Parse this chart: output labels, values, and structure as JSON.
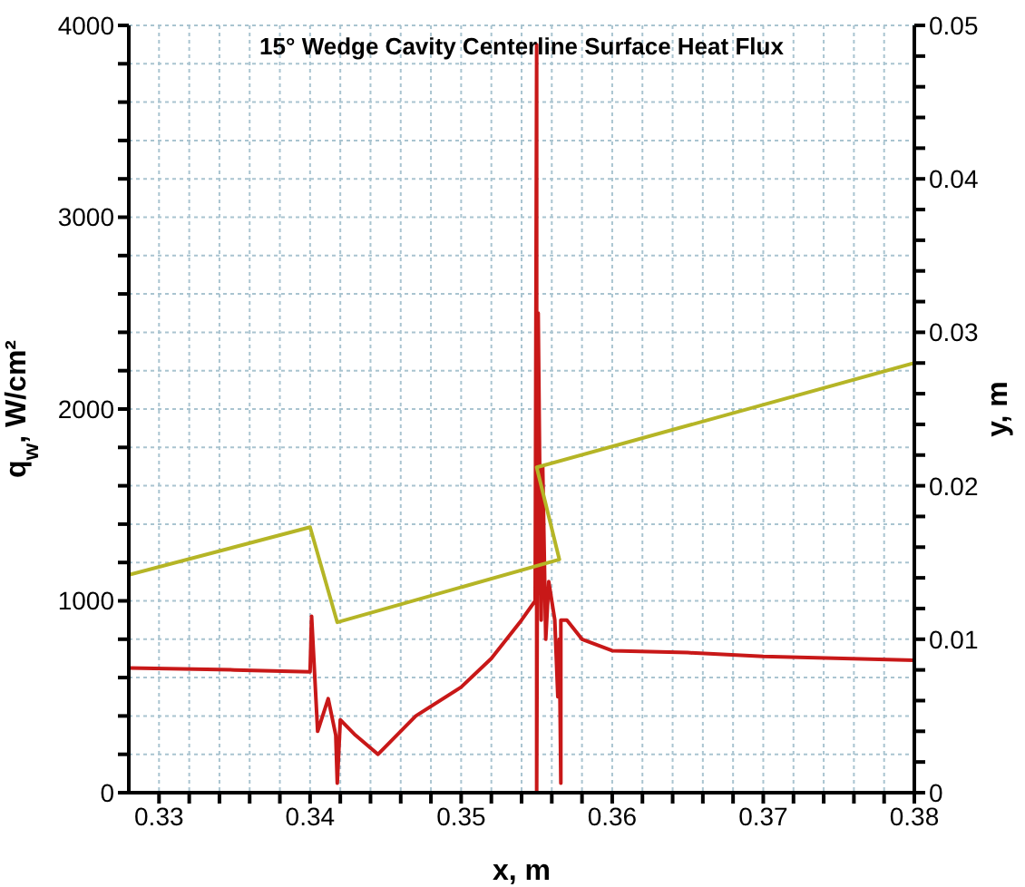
{
  "chart_data": {
    "type": "line",
    "title": "15° Wedge Cavity Centerline Surface Heat Flux",
    "xlabel": "x, m",
    "ylabel": "q$_{w}$, W/cm²",
    "y2label": "y, m",
    "xlim": [
      0.328,
      0.38
    ],
    "xticks": [
      0.33,
      {
        "value": 0.332,
        "label": null
      },
      {
        "value": 0.334,
        "label": null
      },
      {
        "value": 0.336,
        "label": null
      },
      {
        "value": 0.338,
        "label": null
      },
      0.34,
      {
        "value": 0.342,
        "label": null
      },
      {
        "value": 0.344,
        "label": null
      },
      {
        "value": 0.346,
        "label": null
      },
      {
        "value": 0.348,
        "label": null
      },
      0.35,
      {
        "value": 0.352,
        "label": null
      },
      {
        "value": 0.354,
        "label": null
      },
      {
        "value": 0.356,
        "label": null
      },
      {
        "value": 0.358,
        "label": null
      },
      0.36,
      {
        "value": 0.362,
        "label": null
      },
      {
        "value": 0.364,
        "label": null
      },
      {
        "value": 0.366,
        "label": null
      },
      {
        "value": 0.368,
        "label": null
      },
      0.37,
      {
        "value": 0.372,
        "label": null
      },
      {
        "value": 0.374,
        "label": null
      },
      {
        "value": 0.376,
        "label": null
      },
      {
        "value": 0.378,
        "label": null
      },
      0.38
    ],
    "ylim": [
      0,
      4000
    ],
    "yticks": [
      0,
      {
        "value": 200,
        "label": null
      },
      {
        "value": 400,
        "label": null
      },
      {
        "value": 600,
        "label": null
      },
      {
        "value": 800,
        "label": null
      },
      1000,
      {
        "value": 1200,
        "label": null
      },
      {
        "value": 1400,
        "label": null
      },
      {
        "value": 1600,
        "label": null
      },
      {
        "value": 1800,
        "label": null
      },
      2000,
      {
        "value": 2200,
        "label": null
      },
      {
        "value": 2400,
        "label": null
      },
      {
        "value": 2600,
        "label": null
      },
      {
        "value": 2800,
        "label": null
      },
      3000,
      {
        "value": 3200,
        "label": null
      },
      {
        "value": 3400,
        "label": null
      },
      {
        "value": 3600,
        "label": null
      },
      {
        "value": 3800,
        "label": null
      },
      4000
    ],
    "y2lim": [
      0,
      0.05
    ],
    "y2ticks": [
      0,
      {
        "value": 0.002,
        "label": null
      },
      {
        "value": 0.004,
        "label": null
      },
      {
        "value": 0.006,
        "label": null
      },
      {
        "value": 0.008,
        "label": null
      },
      0.01,
      {
        "value": 0.012,
        "label": null
      },
      {
        "value": 0.014,
        "label": null
      },
      {
        "value": 0.016,
        "label": null
      },
      {
        "value": 0.018,
        "label": null
      },
      0.02,
      {
        "value": 0.022,
        "label": null
      },
      {
        "value": 0.024,
        "label": null
      },
      {
        "value": 0.026,
        "label": null
      },
      {
        "value": 0.028,
        "label": null
      },
      0.03,
      {
        "value": 0.032,
        "label": null
      },
      {
        "value": 0.034,
        "label": null
      },
      {
        "value": 0.036,
        "label": null
      },
      {
        "value": 0.038,
        "label": null
      },
      0.04,
      {
        "value": 0.042,
        "label": null
      },
      {
        "value": 0.044,
        "label": null
      },
      {
        "value": 0.046,
        "label": null
      },
      {
        "value": 0.048,
        "label": null
      },
      0.05
    ],
    "grid": true,
    "marker": "none",
    "line_style": "solid",
    "series": [
      {
        "color": "#c81818",
        "x": [
          0.328,
          0.335,
          0.34,
          0.3401,
          0.3405,
          0.3412,
          0.3417,
          0.3418,
          0.342,
          0.343,
          0.3445,
          0.347,
          0.35,
          0.352,
          0.354,
          0.3549,
          0.355,
          0.355,
          0.3551,
          0.3553,
          0.3554,
          0.3556,
          0.3558,
          0.3562,
          0.3564,
          0.3565,
          0.3566,
          0.3566,
          0.357,
          0.358,
          0.36,
          0.365,
          0.37,
          0.38
        ],
        "values": [
          650,
          640,
          630,
          920,
          320,
          490,
          300,
          50,
          380,
          300,
          200,
          400,
          550,
          700,
          900,
          1000,
          3900,
          0,
          2500,
          900,
          1700,
          800,
          1100,
          900,
          500,
          800,
          50,
          900,
          900,
          800,
          740,
          730,
          710,
          690
        ]
      },
      {
        "color": "#b5b526",
        "axis": "y2",
        "x": [
          0.328,
          0.34,
          0.3418,
          0.3565,
          0.355,
          0.38
        ],
        "values": [
          0.0142,
          0.0173,
          0.0111,
          0.0152,
          0.0212,
          0.028
        ]
      }
    ]
  }
}
